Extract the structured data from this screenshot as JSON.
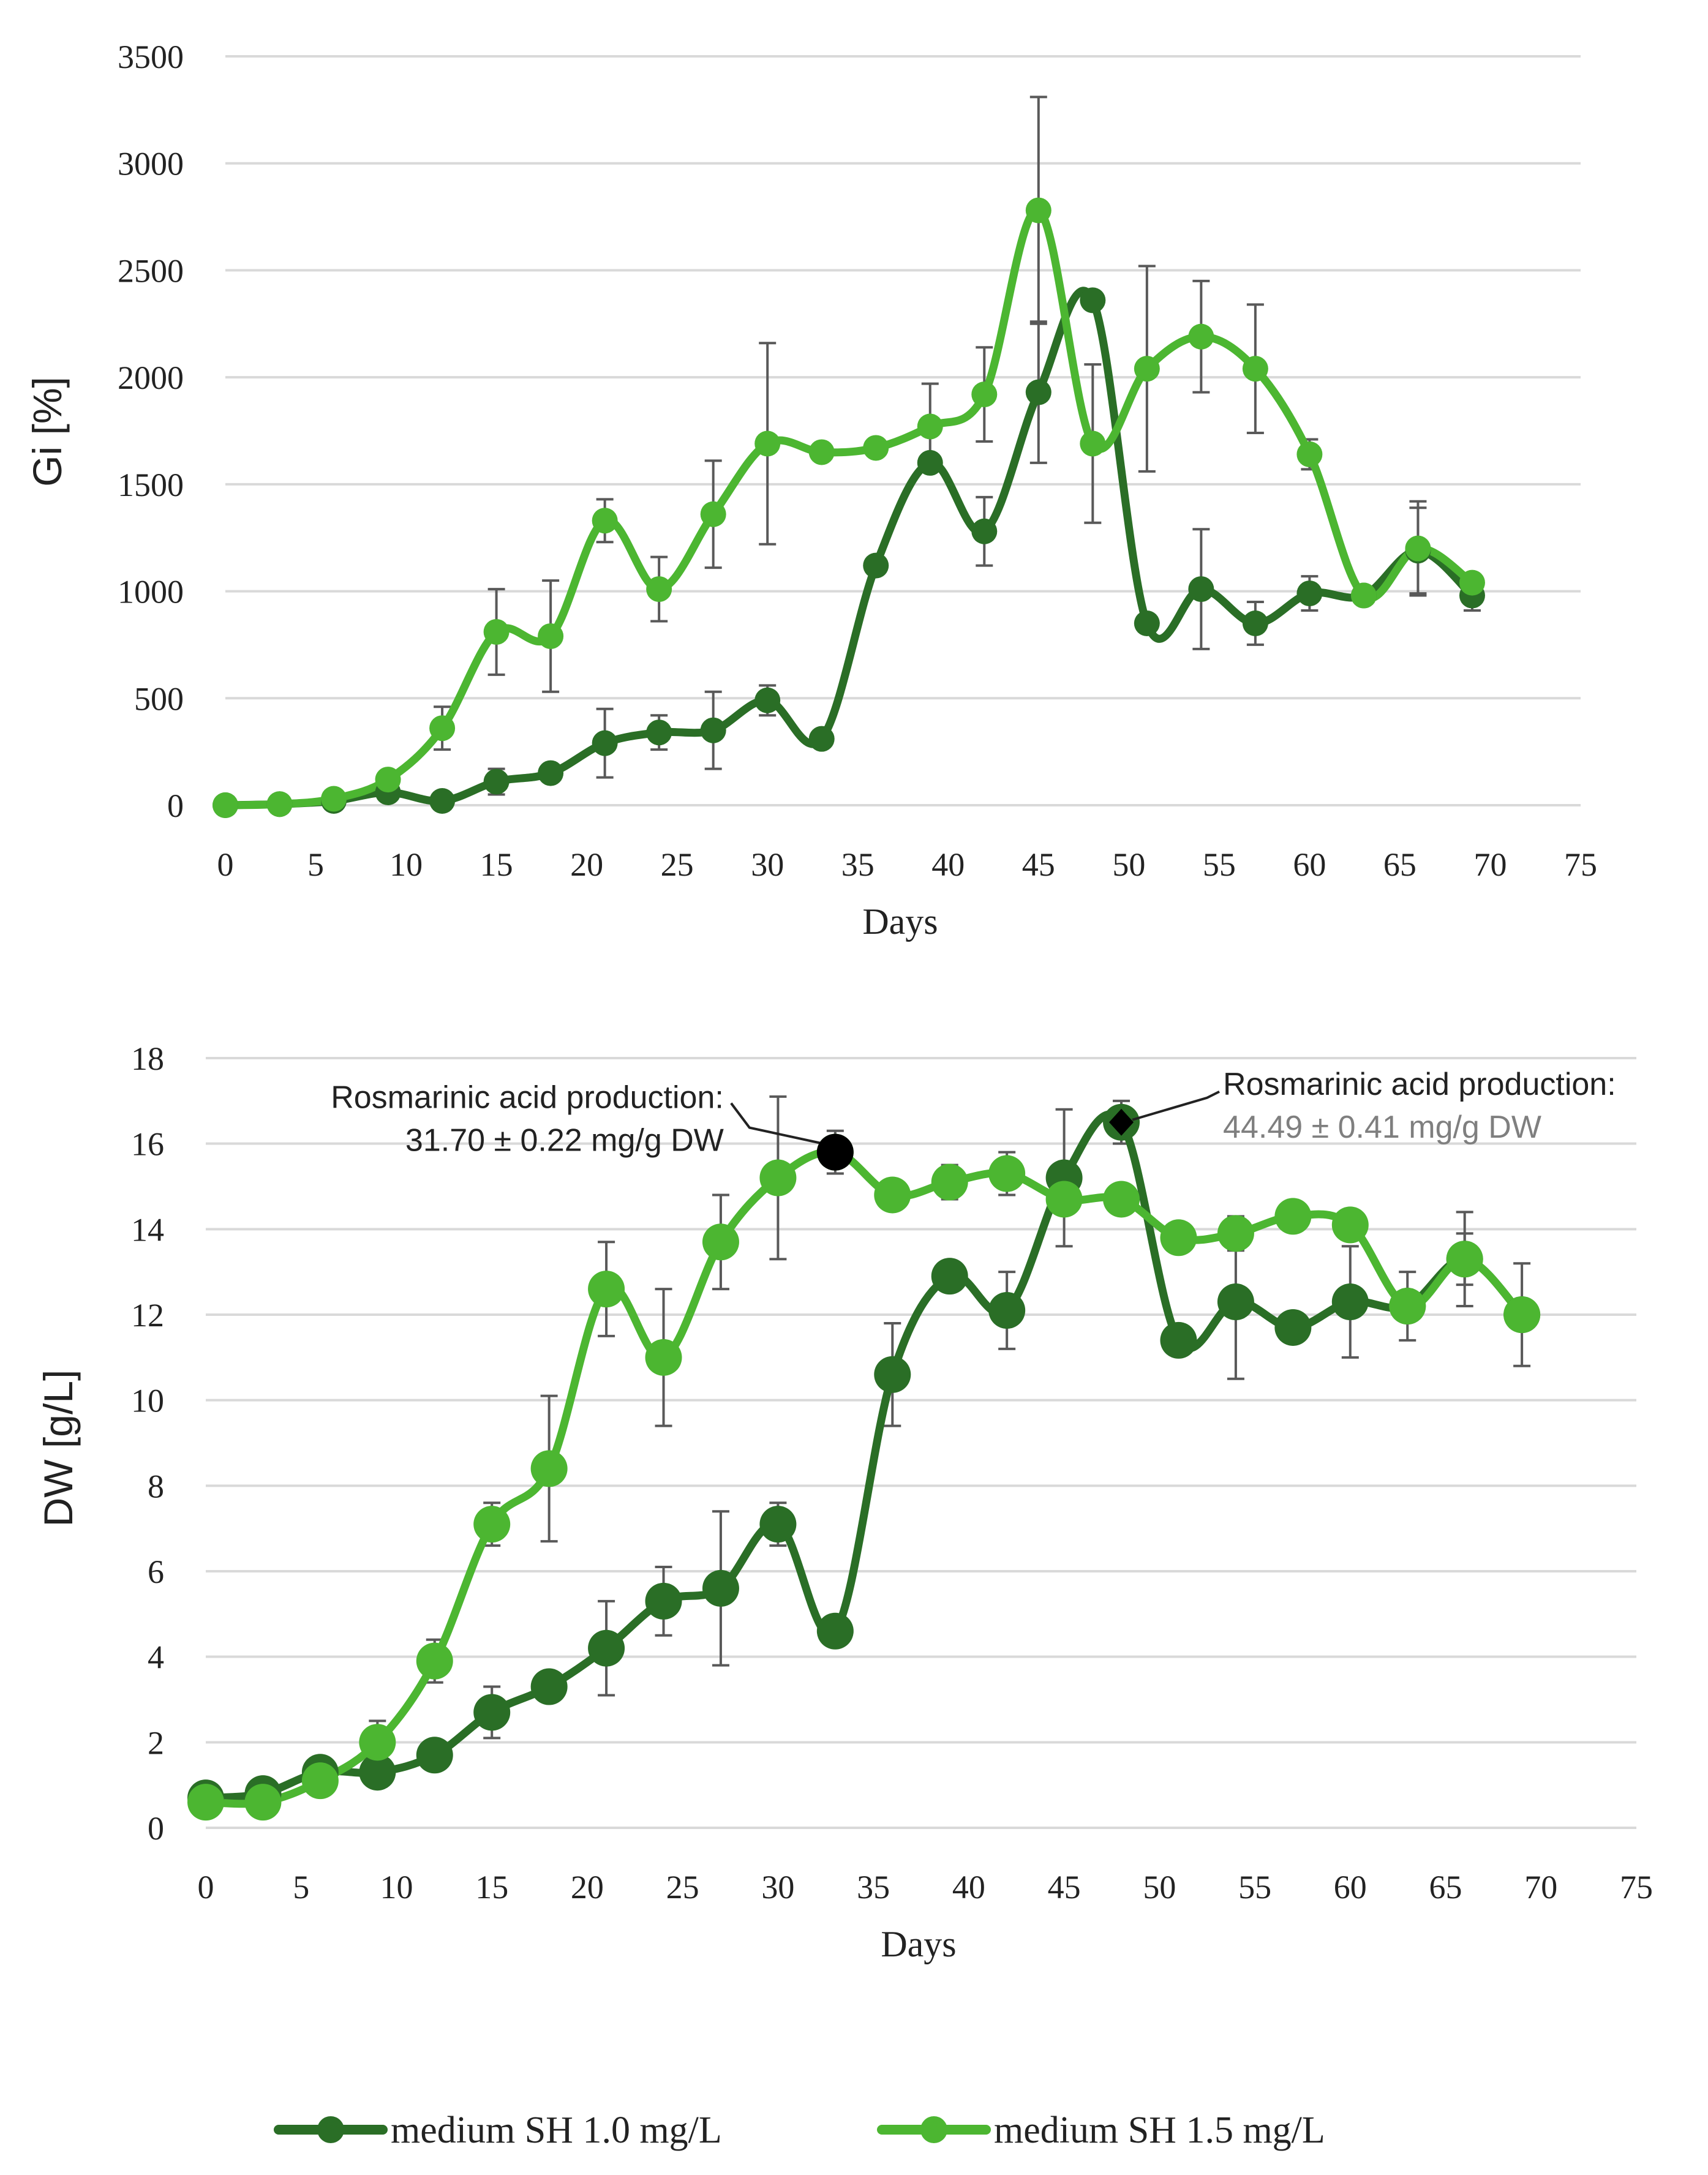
{
  "colors": {
    "dark": "#2a6e26",
    "light": "#4cb631",
    "grid": "#d9d9d9",
    "errorbar": "#595959",
    "text": "#222222",
    "annotation_gray": "#7f7f7f"
  },
  "legend": {
    "items": [
      {
        "label": "medium SH 1.0 mg/L",
        "color": "#2a6e26"
      },
      {
        "label": "medium SH 1.5 mg/L",
        "color": "#4cb631"
      }
    ]
  },
  "chart_data": [
    {
      "type": "line",
      "title": "",
      "xlabel": "Days",
      "ylabel": "Gi [%]",
      "xlim": [
        0,
        75
      ],
      "ylim": [
        0,
        3500
      ],
      "xticks": [
        0,
        5,
        10,
        15,
        20,
        25,
        30,
        35,
        40,
        45,
        50,
        55,
        60,
        65,
        70,
        75
      ],
      "yticks": [
        0,
        500,
        1000,
        1500,
        2000,
        2500,
        3000,
        3500
      ],
      "grid": true,
      "series": [
        {
          "name": "medium SH 1.0 mg/L",
          "x": [
            0,
            3,
            6,
            9,
            12,
            15,
            18,
            21,
            24,
            27,
            30,
            33,
            36,
            39,
            42,
            45,
            48,
            51,
            54,
            57,
            60,
            63,
            66,
            69
          ],
          "y": [
            0,
            5,
            20,
            60,
            20,
            110,
            150,
            290,
            340,
            350,
            490,
            310,
            1120,
            1600,
            1280,
            1930,
            2360,
            850,
            1010,
            850,
            990,
            980,
            1190,
            980
          ],
          "err": [
            0,
            0,
            0,
            0,
            0,
            60,
            0,
            160,
            80,
            180,
            70,
            0,
            0,
            0,
            160,
            330,
            0,
            0,
            280,
            100,
            80,
            0,
            200,
            70
          ]
        },
        {
          "name": "medium SH 1.5 mg/L",
          "x": [
            0,
            3,
            6,
            9,
            12,
            15,
            18,
            21,
            24,
            27,
            30,
            33,
            36,
            39,
            42,
            45,
            48,
            51,
            54,
            57,
            60,
            63,
            66,
            69
          ],
          "y": [
            0,
            5,
            30,
            120,
            360,
            810,
            790,
            1330,
            1010,
            1360,
            1690,
            1650,
            1670,
            1770,
            1920,
            2780,
            1690,
            2040,
            2190,
            2040,
            1640,
            980,
            1200,
            1040
          ],
          "err": [
            0,
            0,
            0,
            0,
            100,
            200,
            260,
            100,
            150,
            250,
            470,
            0,
            0,
            200,
            220,
            530,
            370,
            480,
            260,
            300,
            70,
            0,
            220,
            0
          ]
        }
      ]
    },
    {
      "type": "line",
      "title": "",
      "xlabel": "Days",
      "ylabel": "DW [g/L]",
      "xlim": [
        0,
        75
      ],
      "ylim": [
        0,
        18
      ],
      "xticks": [
        0,
        5,
        10,
        15,
        20,
        25,
        30,
        35,
        40,
        45,
        50,
        55,
        60,
        65,
        70,
        75
      ],
      "yticks": [
        0,
        2,
        4,
        6,
        8,
        10,
        12,
        14,
        16,
        18
      ],
      "grid": true,
      "series": [
        {
          "name": "medium SH 1.0 mg/L",
          "x": [
            0,
            3,
            6,
            9,
            12,
            15,
            18,
            21,
            24,
            27,
            30,
            33,
            36,
            39,
            42,
            45,
            48,
            51,
            54,
            57,
            60,
            63,
            66,
            69
          ],
          "y": [
            0.7,
            0.8,
            1.3,
            1.3,
            1.7,
            2.7,
            3.3,
            4.2,
            5.3,
            5.6,
            7.1,
            4.6,
            10.6,
            12.9,
            12.1,
            15.2,
            16.5,
            11.4,
            12.3,
            11.7,
            12.3,
            12.2,
            13.3,
            12.0
          ],
          "err": [
            0,
            0,
            0,
            0,
            0,
            0.6,
            0,
            1.1,
            0.8,
            1.8,
            0.5,
            0,
            1.2,
            0,
            0.9,
            1.6,
            0.5,
            0,
            1.8,
            0,
            1.3,
            0,
            1.1,
            1.2
          ]
        },
        {
          "name": "medium SH 1.5 mg/L",
          "x": [
            0,
            3,
            6,
            9,
            12,
            15,
            18,
            21,
            24,
            27,
            30,
            33,
            36,
            39,
            42,
            45,
            48,
            51,
            54,
            57,
            60,
            63,
            66,
            69
          ],
          "y": [
            0.6,
            0.6,
            1.1,
            2.0,
            3.9,
            7.1,
            8.4,
            12.6,
            11.0,
            13.7,
            15.2,
            15.8,
            14.8,
            15.1,
            15.3,
            14.7,
            14.7,
            13.8,
            13.9,
            14.3,
            14.1,
            12.2,
            13.3,
            12.0
          ],
          "err": [
            0,
            0,
            0,
            0.5,
            0.5,
            0.5,
            1.7,
            1.1,
            1.6,
            1.1,
            1.9,
            0.5,
            0.3,
            0.4,
            0.5,
            0,
            0,
            0,
            0.4,
            0.3,
            0,
            0.8,
            0.6,
            0
          ]
        }
      ],
      "annotations": [
        {
          "line1": "Rosmarinic acid production:",
          "line2": "31.70 ± 0.22 mg/g DW",
          "x": 33,
          "y": 15.8,
          "marker": "circle",
          "series": "medium SH 1.5 mg/L"
        },
        {
          "line1": "Rosmarinic acid production:",
          "line2": "44.49 ± 0.41 mg/g DW",
          "x": 48,
          "y": 16.5,
          "marker": "diamond",
          "series": "medium SH 1.0 mg/L"
        }
      ]
    }
  ]
}
